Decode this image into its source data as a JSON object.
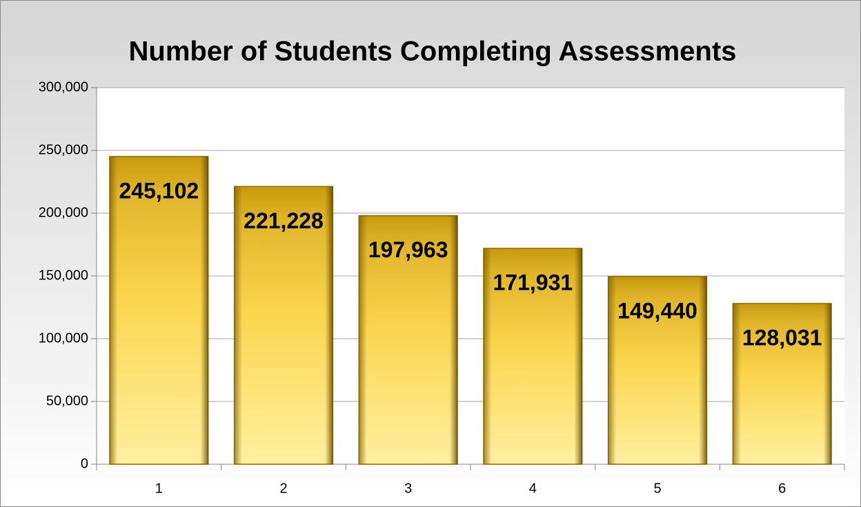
{
  "chart_data": {
    "type": "bar",
    "title": "Number of Students Completing Assessments",
    "categories": [
      "1",
      "2",
      "3",
      "4",
      "5",
      "6"
    ],
    "values": [
      245102,
      221228,
      197963,
      171931,
      149440,
      128031
    ],
    "value_labels": [
      "245,102",
      "221,228",
      "197,963",
      "171,931",
      "149,440",
      "128,031"
    ],
    "color": "#fbd54e",
    "ylim": [
      0,
      300000
    ],
    "yticks": [
      0,
      {
        "value": 50000,
        "label": "50,000"
      },
      {
        "value": 100000,
        "label": "100,000"
      },
      {
        "value": 150000,
        "label": "150,000"
      },
      {
        "value": 200000,
        "label": "200,000"
      },
      {
        "value": 250000,
        "label": "250,000"
      },
      {
        "value": 300000,
        "label": "300,000"
      }
    ],
    "grid": true
  }
}
